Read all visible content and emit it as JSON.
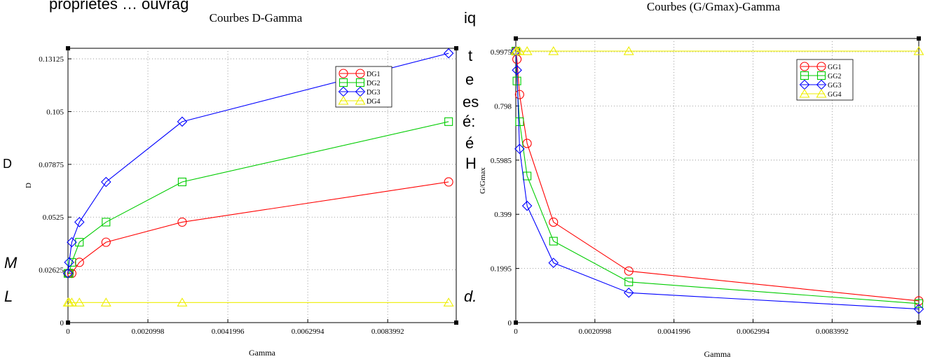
{
  "background_text": {
    "top_left": "propriétés … ouvrag",
    "col_a": "iq",
    "col_b": [
      "t",
      "e",
      "es",
      "é",
      "é:",
      "H"
    ],
    "left_a": "D",
    "left_b": "M",
    "left_c": "L",
    "mid_d": "d."
  },
  "chart_data": [
    {
      "type": "line",
      "title": "Courbes D-Gamma",
      "xlabel": "Gamma",
      "ylabel": "D",
      "xlim": [
        0,
        0.0102
      ],
      "ylim": [
        0,
        0.1365
      ],
      "xticks": [
        0,
        0.0020998,
        0.0041996,
        0.0062994,
        0.0083992
      ],
      "xtick_labels": [
        "0",
        "0.0020998",
        "0.0041996",
        "0.0062994",
        "0.0083992"
      ],
      "yticks": [
        0,
        0.02625,
        0.0525,
        0.07875,
        0.105,
        0.13125
      ],
      "ytick_labels": [
        "0",
        "0.02625",
        "0.0525",
        "0.07875",
        "0.105",
        "0.13125"
      ],
      "grid": true,
      "legend_position": "top-right",
      "series": [
        {
          "name": "DG1",
          "color": "#ff0000",
          "marker": "circle",
          "x": [
            0,
            3e-05,
            0.0001,
            0.0003,
            0.001,
            0.003,
            0.01
          ],
          "y": [
            0.0245,
            0.0245,
            0.0245,
            0.03,
            0.04,
            0.05,
            0.07
          ]
        },
        {
          "name": "DG2",
          "color": "#00cc00",
          "marker": "square",
          "x": [
            0,
            3e-05,
            0.0001,
            0.0003,
            0.001,
            0.003,
            0.01
          ],
          "y": [
            0.0245,
            0.0245,
            0.03,
            0.04,
            0.05,
            0.07,
            0.1
          ]
        },
        {
          "name": "DG3",
          "color": "#0000ff",
          "marker": "diamond",
          "x": [
            0,
            3e-05,
            0.0001,
            0.0003,
            0.001,
            0.003,
            0.01
          ],
          "y": [
            0.0245,
            0.03,
            0.04,
            0.05,
            0.07,
            0.1,
            0.134
          ]
        },
        {
          "name": "DG4",
          "color": "#eeee00",
          "marker": "triangle",
          "x": [
            0,
            3e-05,
            0.0001,
            0.0003,
            0.001,
            0.003,
            0.01
          ],
          "y": [
            0.01,
            0.01,
            0.01,
            0.01,
            0.01,
            0.01,
            0.01
          ]
        }
      ]
    },
    {
      "type": "line",
      "title": "Courbes (G/Gmax)-Gamma",
      "xlabel": "Gamma",
      "ylabel": "G/Gmax",
      "xlim": [
        0,
        0.0107
      ],
      "ylim": [
        0,
        1.0465
      ],
      "xticks": [
        0,
        0.0020998,
        0.0041996,
        0.0062994,
        0.0083992
      ],
      "xtick_labels": [
        "0",
        "0.0020998",
        "0.0041996",
        "0.0062994",
        "0.0083992"
      ],
      "yticks": [
        0,
        0.1995,
        0.399,
        0.5985,
        0.798,
        0.9975
      ],
      "ytick_labels": [
        "0",
        "0.1995",
        "0.399",
        "0.5985",
        "0.798",
        "0.9975"
      ],
      "grid": true,
      "legend_position": "top-right",
      "series": [
        {
          "name": "GG1",
          "color": "#ff0000",
          "marker": "circle",
          "x": [
            0,
            3e-05,
            0.0001,
            0.0003,
            0.001,
            0.003,
            0.0107
          ],
          "y": [
            1.0,
            0.97,
            0.84,
            0.66,
            0.37,
            0.19,
            0.08
          ]
        },
        {
          "name": "GG2",
          "color": "#00cc00",
          "marker": "square",
          "x": [
            0,
            3e-05,
            0.0001,
            0.0003,
            0.001,
            0.003,
            0.0107
          ],
          "y": [
            1.0,
            0.89,
            0.74,
            0.54,
            0.3,
            0.15,
            0.07
          ]
        },
        {
          "name": "GG3",
          "color": "#0000ff",
          "marker": "diamond",
          "x": [
            0,
            3e-05,
            0.0001,
            0.0003,
            0.001,
            0.003,
            0.0107
          ],
          "y": [
            1.0,
            0.93,
            0.64,
            0.43,
            0.22,
            0.11,
            0.05
          ]
        },
        {
          "name": "GG4",
          "color": "#eeee00",
          "marker": "triangle",
          "x": [
            0,
            3e-05,
            0.0001,
            0.0003,
            0.001,
            0.003,
            0.0107
          ],
          "y": [
            1.0,
            1.0,
            1.0,
            1.0,
            1.0,
            1.0,
            1.0
          ]
        }
      ]
    }
  ]
}
